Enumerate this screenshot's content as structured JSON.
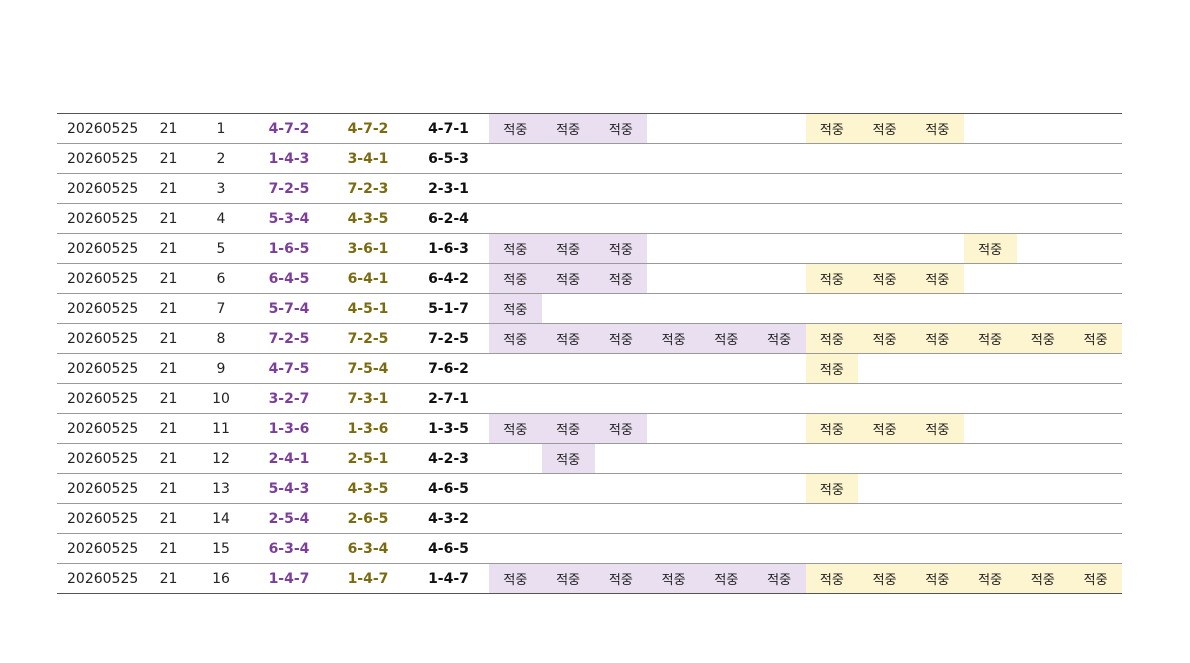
{
  "table": {
    "rows": [
      [
        "20260525",
        "21",
        "1",
        "4-7-2",
        "4-7-2",
        "4-7-1",
        "적중",
        "적중",
        "적중",
        null,
        null,
        null,
        "적중",
        "적중",
        "적중",
        null,
        null,
        null
      ],
      [
        "20260525",
        "21",
        "2",
        "1-4-3",
        "3-4-1",
        "6-5-3",
        null,
        null,
        null,
        null,
        null,
        null,
        null,
        null,
        null,
        null,
        null,
        null
      ],
      [
        "20260525",
        "21",
        "3",
        "7-2-5",
        "7-2-3",
        "2-3-1",
        null,
        null,
        null,
        null,
        null,
        null,
        null,
        null,
        null,
        null,
        null,
        null
      ],
      [
        "20260525",
        "21",
        "4",
        "5-3-4",
        "4-3-5",
        "6-2-4",
        null,
        null,
        null,
        null,
        null,
        null,
        null,
        null,
        null,
        null,
        null,
        null
      ],
      [
        "20260525",
        "21",
        "5",
        "1-6-5",
        "3-6-1",
        "1-6-3",
        "적중",
        "적중",
        "적중",
        null,
        null,
        null,
        null,
        null,
        null,
        "적중",
        null,
        null
      ],
      [
        "20260525",
        "21",
        "6",
        "6-4-5",
        "6-4-1",
        "6-4-2",
        "적중",
        "적중",
        "적중",
        null,
        null,
        null,
        "적중",
        "적중",
        "적중",
        null,
        null,
        null
      ],
      [
        "20260525",
        "21",
        "7",
        "5-7-4",
        "4-5-1",
        "5-1-7",
        "적중",
        null,
        null,
        null,
        null,
        null,
        null,
        null,
        null,
        null,
        null,
        null
      ],
      [
        "20260525",
        "21",
        "8",
        "7-2-5",
        "7-2-5",
        "7-2-5",
        "적중",
        "적중",
        "적중",
        "적중",
        "적중",
        "적중",
        "적중",
        "적중",
        "적중",
        "적중",
        "적중",
        "적중"
      ],
      [
        "20260525",
        "21",
        "9",
        "4-7-5",
        "7-5-4",
        "7-6-2",
        null,
        null,
        null,
        null,
        null,
        null,
        "적중",
        null,
        null,
        null,
        null,
        null
      ],
      [
        "20260525",
        "21",
        "10",
        "3-2-7",
        "7-3-1",
        "2-7-1",
        null,
        null,
        null,
        null,
        null,
        null,
        null,
        null,
        null,
        null,
        null,
        null
      ],
      [
        "20260525",
        "21",
        "11",
        "1-3-6",
        "1-3-6",
        "1-3-5",
        "적중",
        "적중",
        "적중",
        null,
        null,
        null,
        "적중",
        "적중",
        "적중",
        null,
        null,
        null
      ],
      [
        "20260525",
        "21",
        "12",
        "2-4-1",
        "2-5-1",
        "4-2-3",
        null,
        "적중",
        null,
        null,
        null,
        null,
        null,
        null,
        null,
        null,
        null,
        null
      ],
      [
        "20260525",
        "21",
        "13",
        "5-4-3",
        "4-3-5",
        "4-6-5",
        null,
        null,
        null,
        null,
        null,
        null,
        "적중",
        null,
        null,
        null,
        null,
        null
      ],
      [
        "20260525",
        "21",
        "14",
        "2-5-4",
        "2-6-5",
        "4-3-2",
        null,
        null,
        null,
        null,
        null,
        null,
        null,
        null,
        null,
        null,
        null,
        null
      ],
      [
        "20260525",
        "21",
        "15",
        "6-3-4",
        "6-3-4",
        "4-6-5",
        null,
        null,
        null,
        null,
        null,
        null,
        null,
        null,
        null,
        null,
        null,
        null
      ],
      [
        "20260525",
        "21",
        "16",
        "1-4-7",
        "1-4-7",
        "1-4-7",
        "적중",
        "적중",
        "적중",
        "적중",
        "적중",
        "적중",
        "적중",
        "적중",
        "적중",
        "적중",
        "적중",
        "적중"
      ]
    ]
  }
}
